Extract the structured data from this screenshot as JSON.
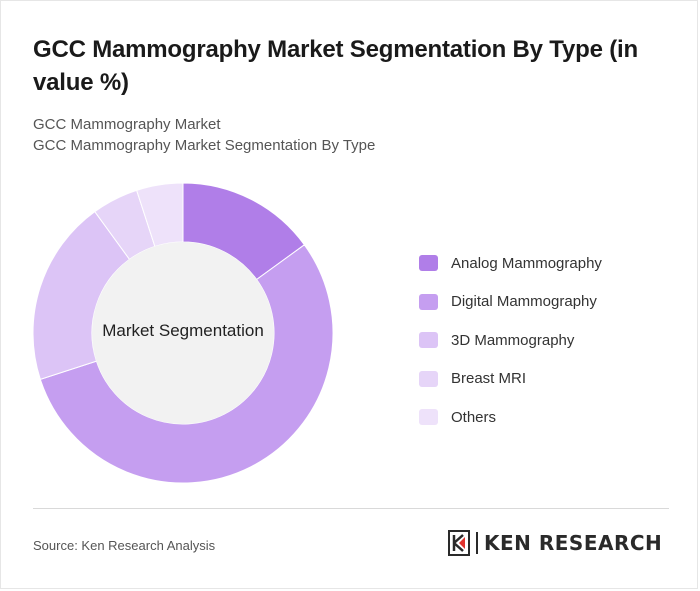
{
  "title": "GCC Mammography Market Segmentation By Type (in value %)",
  "subtitle_line1": "GCC Mammography Market",
  "subtitle_line2": "GCC Mammography Market Segmentation By Type",
  "center_label": "Market Segmentation",
  "source": "Source: Ken Research Analysis",
  "logo": {
    "text": "KEN RESEARCH"
  },
  "chart_data": {
    "type": "pie",
    "donut": true,
    "categories": [
      "Analog Mammography",
      "Digital Mammography",
      "3D Mammography",
      "Breast MRI",
      "Others"
    ],
    "values": [
      15,
      55,
      20,
      5,
      5
    ],
    "colors": [
      "#b07ee8",
      "#c59ef0",
      "#dcc4f6",
      "#e6d5f8",
      "#eee2fa"
    ],
    "legend_position": "right"
  }
}
